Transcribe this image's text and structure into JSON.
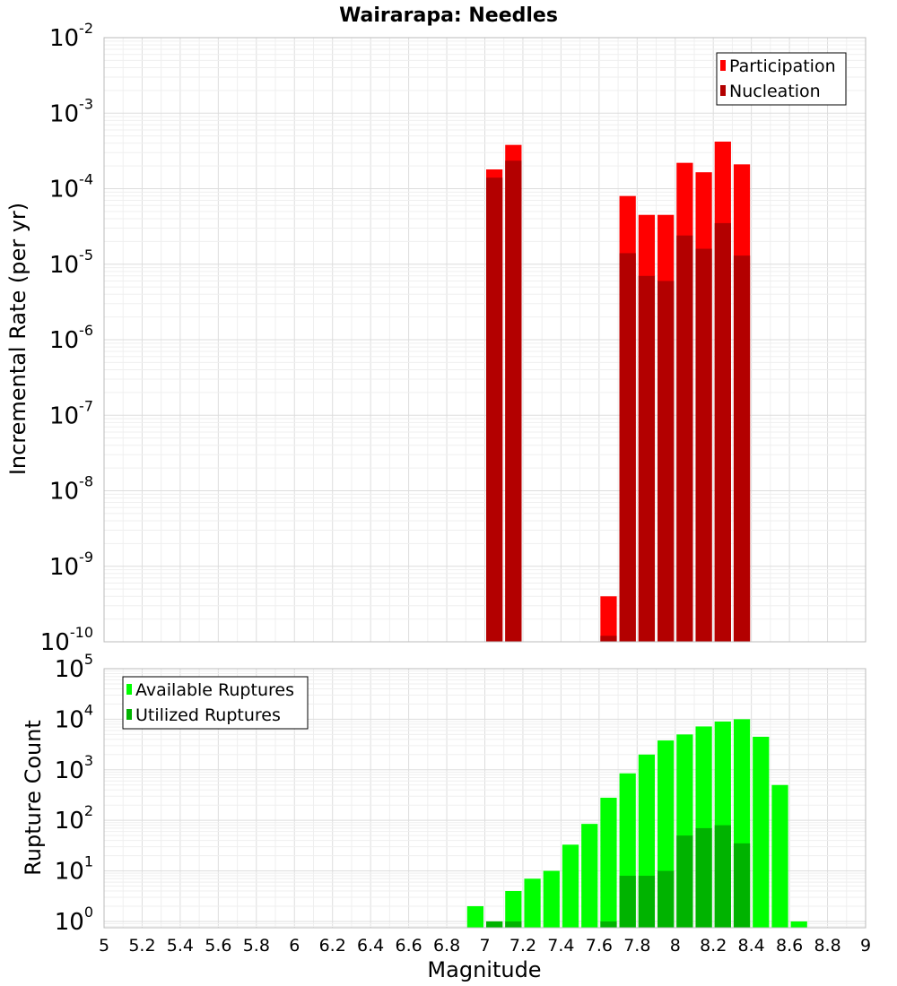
{
  "chart_data": [
    {
      "type": "bar",
      "title": "Wairarapa: Needles",
      "xlabel": "",
      "ylabel": "Incremental Rate (per yr)",
      "yscale": "log",
      "xlim": [
        5,
        9
      ],
      "ylim": [
        1e-10,
        0.01
      ],
      "y_exponents": [
        -10,
        -9,
        -8,
        -7,
        -6,
        -5,
        -4,
        -3,
        -2
      ],
      "grid": true,
      "legend_position": "top-right",
      "bar_width": 0.1,
      "series": [
        {
          "name": "Participation",
          "color": "#ff0000",
          "x": [
            7.05,
            7.15,
            7.65,
            7.75,
            7.85,
            7.95,
            8.05,
            8.15,
            8.25,
            8.35
          ],
          "values": [
            0.00018,
            0.00038,
            4e-10,
            8e-05,
            4.5e-05,
            4.5e-05,
            0.00022,
            0.000165,
            0.00042,
            0.00021
          ]
        },
        {
          "name": "Nucleation",
          "color": "#b30000",
          "x": [
            7.05,
            7.15,
            7.65,
            7.75,
            7.85,
            7.95,
            8.05,
            8.15,
            8.25,
            8.35
          ],
          "values": [
            0.00014,
            0.000235,
            1.2e-10,
            1.4e-05,
            7e-06,
            6e-06,
            2.4e-05,
            1.6e-05,
            3.5e-05,
            1.3e-05
          ]
        }
      ]
    },
    {
      "type": "bar",
      "title": "",
      "xlabel": "Magnitude",
      "ylabel": "Rupture Count",
      "yscale": "log",
      "xlim": [
        5,
        9
      ],
      "ylim": [
        0.75,
        100000.0
      ],
      "y_exponents": [
        0,
        1,
        2,
        3,
        4,
        5
      ],
      "x_ticks": [
        "5",
        "5.2",
        "5.4",
        "5.6",
        "5.8",
        "6",
        "6.2",
        "6.4",
        "6.6",
        "6.8",
        "7",
        "7.2",
        "7.4",
        "7.6",
        "7.8",
        "8",
        "8.2",
        "8.4",
        "8.6",
        "8.8",
        "9"
      ],
      "grid": true,
      "legend_position": "top-left",
      "bar_width": 0.1,
      "series": [
        {
          "name": "Available Ruptures",
          "color": "#00ff00",
          "x": [
            6.95,
            7.05,
            7.15,
            7.25,
            7.35,
            7.45,
            7.55,
            7.65,
            7.75,
            7.85,
            7.95,
            8.05,
            8.15,
            8.25,
            8.35,
            8.45,
            8.55,
            8.65
          ],
          "values": [
            2,
            1,
            4,
            7,
            10,
            33,
            85,
            280,
            850,
            2000,
            3800,
            5000,
            7200,
            9000,
            10000,
            4500,
            500,
            1
          ]
        },
        {
          "name": "Utilized Ruptures",
          "color": "#00b300",
          "x": [
            7.05,
            7.15,
            7.65,
            7.75,
            7.85,
            7.95,
            8.05,
            8.15,
            8.25,
            8.35
          ],
          "values": [
            1,
            1,
            1,
            8,
            8,
            10,
            50,
            70,
            80,
            35
          ]
        }
      ]
    }
  ]
}
